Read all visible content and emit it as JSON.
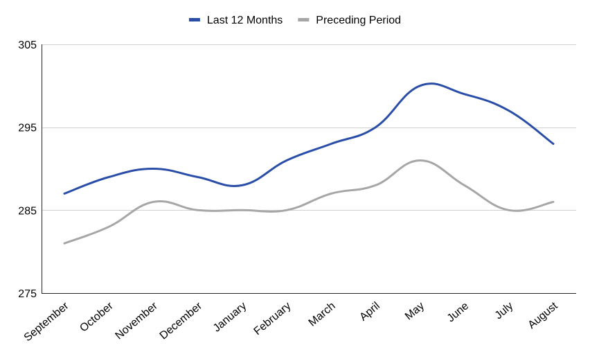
{
  "chart_data": {
    "type": "line",
    "categories": [
      "September",
      "October",
      "November",
      "December",
      "January",
      "February",
      "March",
      "April",
      "May",
      "June",
      "July",
      "August"
    ],
    "series": [
      {
        "name": "Last 12 Months",
        "color": "#2a4ea8",
        "values": [
          287,
          289,
          290,
          289,
          288,
          291,
          293,
          295,
          300,
          299,
          297,
          293
        ]
      },
      {
        "name": "Preceding Period",
        "color": "#a6a6a6",
        "values": [
          281,
          283,
          286,
          285,
          285,
          285,
          287,
          288,
          291,
          288,
          285,
          286
        ]
      }
    ],
    "yticks": [
      "275",
      "285",
      "295",
      "305"
    ],
    "ylim": [
      275,
      305
    ],
    "grid": true,
    "legend_position": "top-center",
    "smooth": true
  }
}
